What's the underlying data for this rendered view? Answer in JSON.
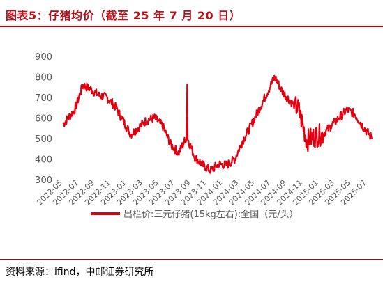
{
  "header": {
    "title": "图表5：仔猪均价（截至 25 年 7 月 20 日）"
  },
  "footer": {
    "source": "资料来源：ifind，中邮证券研究所"
  },
  "colors": {
    "accent": "#c00000",
    "series": "#e0000f",
    "text": "#595959"
  },
  "chart_data": {
    "type": "line",
    "title": "",
    "xlabel": "",
    "ylabel": "",
    "ylim": [
      300,
      900
    ],
    "yticks": [
      300,
      400,
      500,
      600,
      700,
      800,
      900
    ],
    "xticks": [
      "2022-05",
      "2022-07",
      "2022-09",
      "2022-11",
      "2023-01",
      "2023-03",
      "2023-05",
      "2023-07",
      "2023-09",
      "2023-11",
      "2024-01",
      "2024-03",
      "2024-05",
      "2024-07",
      "2024-09",
      "2024-11",
      "2025-01",
      "2025-03",
      "2025-05",
      "2025-07"
    ],
    "grid": false,
    "legend": "bottom",
    "series": [
      {
        "name": "出栏价:三元仔猪(15kg左右):全国（元/头）",
        "x": [
          "2022-05",
          "2022-06",
          "2022-07",
          "2022-08",
          "2022-09",
          "2022-10",
          "2022-11",
          "2022-12",
          "2023-01",
          "2023-02",
          "2023-03",
          "2023-04",
          "2023-05",
          "2023-06",
          "2023-07",
          "2023-08",
          "2023-09",
          "2023-10",
          "2023-11",
          "2023-12",
          "2024-01",
          "2024-02",
          "2024-03",
          "2024-04",
          "2024-05",
          "2024-06",
          "2024-07",
          "2024-08",
          "2024-09",
          "2024-10",
          "2024-11",
          "2024-12",
          "2025-01",
          "2025-02",
          "2025-03",
          "2025-04",
          "2025-05",
          "2025-06",
          "2025-07"
        ],
        "values": [
          570,
          640,
          760,
          740,
          710,
          700,
          660,
          590,
          520,
          555,
          590,
          600,
          560,
          470,
          430,
          510,
          410,
          370,
          345,
          375,
          370,
          400,
          490,
          560,
          640,
          720,
          800,
          725,
          680,
          640,
          490,
          510,
          520,
          560,
          600,
          640,
          620,
          560,
          510
        ]
      }
    ]
  }
}
